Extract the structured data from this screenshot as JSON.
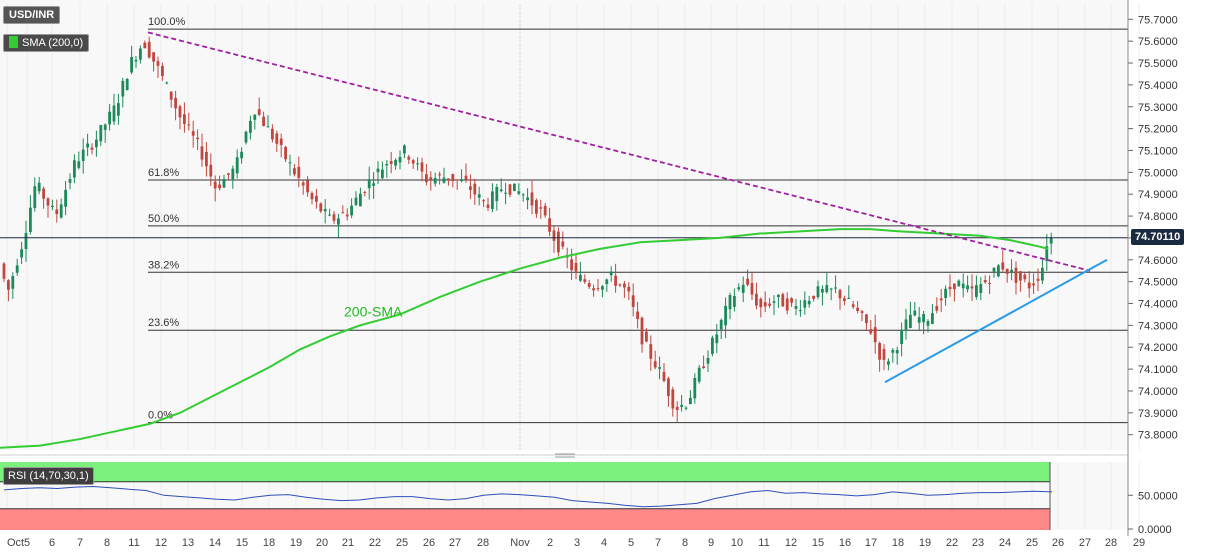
{
  "symbol": "USD/INR",
  "indicator_label": "SMA (200,0)",
  "sma_color": "#33cc33",
  "rsi_label": "RSI (14,70,30,1)",
  "last_price": "74.70110",
  "chart_data": [
    {
      "type": "candlestick",
      "title": "USD/INR",
      "price_ticks": [
        "75.7000",
        "75.6000",
        "75.5000",
        "75.4000",
        "75.3000",
        "75.2000",
        "75.1000",
        "75.0000",
        "74.9000",
        "74.8000",
        "74.7000",
        "74.6000",
        "74.5000",
        "74.4000",
        "74.3000",
        "74.2000",
        "74.1000",
        "74.0000",
        "73.9000",
        "73.8000"
      ],
      "ylim": [
        73.73,
        75.77
      ],
      "x_ticks": [
        "Oct",
        "5",
        "6",
        "7",
        "8",
        "11",
        "12",
        "13",
        "14",
        "15",
        "18",
        "19",
        "20",
        "21",
        "22",
        "25",
        "26",
        "27",
        "28",
        "Nov",
        "2",
        "3",
        "4",
        "5",
        "7",
        "8",
        "9",
        "10",
        "11",
        "12",
        "15",
        "16",
        "17",
        "18",
        "19",
        "22",
        "23",
        "24",
        "25",
        "26",
        "27",
        "28",
        "29"
      ],
      "fibonacci": [
        {
          "label": "100.0%",
          "price": 75.655
        },
        {
          "label": "61.8%",
          "price": 74.965
        },
        {
          "label": "50.0%",
          "price": 74.755
        },
        {
          "label": "38.2%",
          "price": 74.543
        },
        {
          "label": "23.6%",
          "price": 74.278
        },
        {
          "label": "0.0%",
          "price": 73.855
        }
      ],
      "sma_label": "200-SMA",
      "sma_200": [
        {
          "x": 0,
          "y": 73.74
        },
        {
          "x": 40,
          "y": 73.75
        },
        {
          "x": 80,
          "y": 73.78
        },
        {
          "x": 120,
          "y": 73.82
        },
        {
          "x": 150,
          "y": 73.85
        },
        {
          "x": 180,
          "y": 73.9
        },
        {
          "x": 210,
          "y": 73.97
        },
        {
          "x": 240,
          "y": 74.04
        },
        {
          "x": 270,
          "y": 74.11
        },
        {
          "x": 300,
          "y": 74.19
        },
        {
          "x": 330,
          "y": 74.25
        },
        {
          "x": 360,
          "y": 74.3
        },
        {
          "x": 400,
          "y": 74.35
        },
        {
          "x": 440,
          "y": 74.43
        },
        {
          "x": 480,
          "y": 74.5
        },
        {
          "x": 520,
          "y": 74.56
        },
        {
          "x": 560,
          "y": 74.61
        },
        {
          "x": 600,
          "y": 74.65
        },
        {
          "x": 640,
          "y": 74.68
        },
        {
          "x": 680,
          "y": 74.69
        },
        {
          "x": 720,
          "y": 74.7
        },
        {
          "x": 760,
          "y": 74.72
        },
        {
          "x": 800,
          "y": 74.73
        },
        {
          "x": 840,
          "y": 74.74
        },
        {
          "x": 870,
          "y": 74.74
        },
        {
          "x": 900,
          "y": 74.73
        },
        {
          "x": 940,
          "y": 74.72
        },
        {
          "x": 980,
          "y": 74.71
        },
        {
          "x": 1010,
          "y": 74.69
        },
        {
          "x": 1040,
          "y": 74.66
        },
        {
          "x": 1048,
          "y": 74.65
        }
      ],
      "trend_down": {
        "from": {
          "x": 148,
          "y": 75.64
        },
        "to": {
          "x": 1090,
          "y": 74.55
        }
      },
      "trend_up": {
        "from": {
          "x": 885,
          "y": 74.04
        },
        "to": {
          "x": 1107,
          "y": 74.6
        }
      },
      "last_value": 74.7011,
      "candles_summary": {
        "start": 74.6,
        "peak": 75.65,
        "trough": 73.86,
        "end": 74.7
      }
    },
    {
      "type": "line",
      "title": "RSI (14,70,30,1)",
      "ticks": [
        "50.0000",
        "0.0000"
      ],
      "ylim": [
        0,
        100
      ],
      "overbought": 70,
      "oversold": 30,
      "rsi_values": [
        58,
        60,
        61,
        60,
        62,
        63,
        61,
        59,
        57,
        50,
        48,
        46,
        44,
        43,
        47,
        50,
        51,
        47,
        44,
        42,
        43,
        46,
        48,
        48,
        45,
        43,
        45,
        50,
        52,
        51,
        49,
        47,
        42,
        40,
        38,
        35,
        33,
        34,
        36,
        38,
        45,
        50,
        55,
        57,
        53,
        54,
        52,
        51,
        49,
        51,
        55,
        53,
        50,
        51,
        53,
        54,
        54,
        55,
        56,
        55
      ]
    }
  ]
}
